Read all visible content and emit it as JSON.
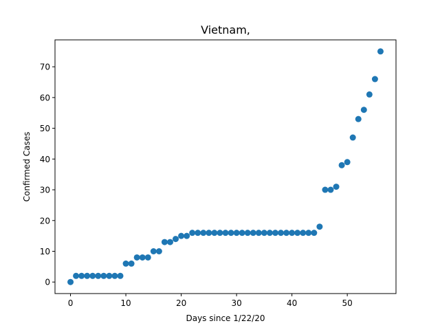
{
  "chart_data": {
    "type": "scatter",
    "title": "Vietnam,",
    "xlabel": "Days since 1/22/20",
    "ylabel": "Confirmed Cases",
    "xlim": [
      -2.8,
      58.8
    ],
    "ylim": [
      -3.75,
      78.75
    ],
    "xticks": [
      0,
      10,
      20,
      30,
      40,
      50
    ],
    "yticks": [
      0,
      10,
      20,
      30,
      40,
      50,
      60,
      70
    ],
    "grid": false,
    "marker_color": "#1f77b4",
    "series": [
      {
        "x": [
          0,
          1,
          2,
          3,
          4,
          5,
          6,
          7,
          8,
          9,
          10,
          11,
          12,
          13,
          14,
          15,
          16,
          17,
          18,
          19,
          20,
          21,
          22,
          23,
          24,
          25,
          26,
          27,
          28,
          29,
          30,
          31,
          32,
          33,
          34,
          35,
          36,
          37,
          38,
          39,
          40,
          41,
          42,
          43,
          44,
          45,
          46,
          47,
          48,
          49,
          50,
          51,
          52,
          53,
          54,
          55,
          56
        ],
        "y": [
          0,
          2,
          2,
          2,
          2,
          2,
          2,
          2,
          2,
          2,
          6,
          6,
          8,
          8,
          8,
          10,
          10,
          13,
          13,
          14,
          15,
          15,
          16,
          16,
          16,
          16,
          16,
          16,
          16,
          16,
          16,
          16,
          16,
          16,
          16,
          16,
          16,
          16,
          16,
          16,
          16,
          16,
          16,
          16,
          16,
          18,
          30,
          30,
          31,
          38,
          39,
          47,
          53,
          56,
          61,
          66,
          75
        ]
      }
    ]
  }
}
